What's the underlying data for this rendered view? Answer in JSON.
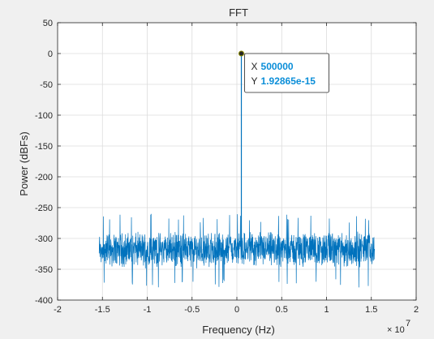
{
  "chart_data": {
    "type": "line",
    "title": "FFT",
    "xlabel": "Frequency (Hz)",
    "ylabel": "Power (dBFs)",
    "x_exponent_base": "× 10",
    "x_exponent_power": "7",
    "xlim": [
      -2,
      2
    ],
    "ylim": [
      -400,
      50
    ],
    "x_ticks": [
      "-2",
      "-1.5",
      "-1",
      "-0.5",
      "0",
      "0.5",
      "1",
      "1.5",
      "2"
    ],
    "y_ticks": [
      "50",
      "0",
      "-50",
      "-100",
      "-150",
      "-200",
      "-250",
      "-300",
      "-350",
      "-400"
    ],
    "grid": true,
    "line_color": "#0072bd",
    "series": [
      {
        "x_range": [
          -1.536,
          1.536
        ],
        "noise_floor_mean": -318,
        "noise_floor_spread": [
          -380,
          -260
        ],
        "peak": {
          "x": 0.05,
          "y": 0
        }
      }
    ],
    "datatip": {
      "x_label": "X",
      "x_value": "500000",
      "y_label": "Y",
      "y_value": "1.92865e-15"
    }
  }
}
